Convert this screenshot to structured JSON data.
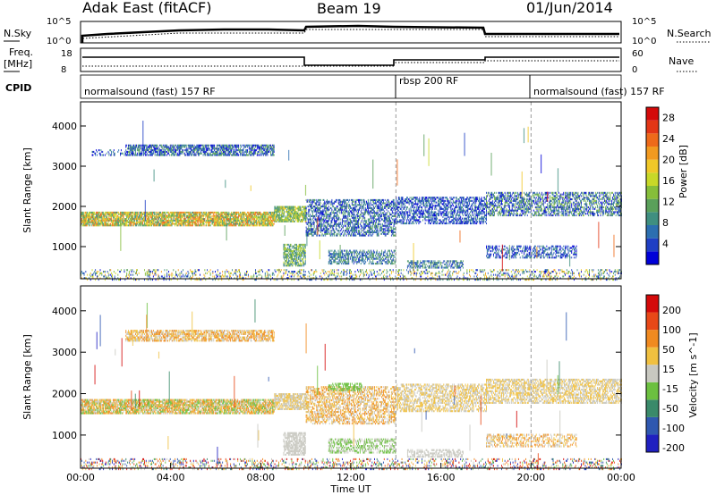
{
  "header": {
    "station": "Adak East (fitACF)",
    "beam": "Beam 19",
    "date": "01/Jun/2014"
  },
  "summary_panels": {
    "nsky": {
      "label": "N.Sky",
      "tick_top": "10^5",
      "tick_bottom": "10^0"
    },
    "nsearch": {
      "label": "N.Search",
      "tick_top": "10^5",
      "tick_bottom": "10^0"
    },
    "freq": {
      "label_line1": "Freq.",
      "label_line2": "[MHz]",
      "tick_top": "18",
      "tick_bottom": "8"
    },
    "nave": {
      "label": "Nave",
      "tick_top": "60",
      "tick_bottom": "0"
    },
    "cpid": {
      "label": "CPID",
      "segments": [
        {
          "name": "normalsound (fast) 157 RF",
          "start_h": 0,
          "end_h": 14
        },
        {
          "name": "rbsp 200 RF",
          "start_h": 14,
          "end_h": 20
        },
        {
          "name": "normalsound (fast) 157 RF",
          "start_h": 20,
          "end_h": 24
        }
      ]
    }
  },
  "chart_data": [
    {
      "type": "heatmap",
      "name": "power",
      "ylabel": "Slant Range [km]",
      "ylim": [
        200,
        4600
      ],
      "yticks": [
        "1000",
        "2000",
        "3000",
        "4000"
      ],
      "colorbar_label": "Power [dB]",
      "colorbar_ticks": [
        "4",
        "8",
        "12",
        "16",
        "20",
        "24",
        "28"
      ],
      "colors": [
        "#0000d8",
        "#1f3fc4",
        "#2c6fb0",
        "#3f8f80",
        "#5aa05a",
        "#86be3a",
        "#c8d828",
        "#f0c828",
        "#f29a20",
        "#ee6a1a",
        "#e23616",
        "#d40a0a"
      ],
      "bands": [
        {
          "t0": 0.0,
          "t1": 8.6,
          "r0": 1550,
          "r1": 1900,
          "dense": 0.85,
          "lvl": [
            3,
            9
          ]
        },
        {
          "t0": 2.0,
          "t1": 8.6,
          "r0": 3300,
          "r1": 3550,
          "dense": 0.7,
          "lvl": [
            0,
            4
          ]
        },
        {
          "t0": 0.5,
          "t1": 2.0,
          "r0": 3300,
          "r1": 3450,
          "dense": 0.3,
          "lvl": [
            0,
            3
          ]
        },
        {
          "t0": 8.6,
          "t1": 10.0,
          "r0": 1650,
          "r1": 2050,
          "dense": 0.8,
          "lvl": [
            3,
            7
          ]
        },
        {
          "t0": 9.0,
          "t1": 10.0,
          "r0": 550,
          "r1": 1100,
          "dense": 0.7,
          "lvl": [
            2,
            6
          ]
        },
        {
          "t0": 10.0,
          "t1": 14.0,
          "r0": 1300,
          "r1": 2200,
          "dense": 0.55,
          "lvl": [
            0,
            4
          ]
        },
        {
          "t0": 11.0,
          "t1": 14.0,
          "r0": 600,
          "r1": 950,
          "dense": 0.55,
          "lvl": [
            1,
            4
          ]
        },
        {
          "t0": 14.0,
          "t1": 18.0,
          "r0": 1600,
          "r1": 2250,
          "dense": 0.55,
          "lvl": [
            0,
            3
          ]
        },
        {
          "t0": 14.5,
          "t1": 17.0,
          "r0": 500,
          "r1": 700,
          "dense": 0.55,
          "lvl": [
            1,
            4
          ]
        },
        {
          "t0": 18.0,
          "t1": 24.0,
          "r0": 1800,
          "r1": 2400,
          "dense": 0.55,
          "lvl": [
            0,
            5
          ]
        },
        {
          "t0": 18.0,
          "t1": 22.0,
          "r0": 750,
          "r1": 1050,
          "dense": 0.45,
          "lvl": [
            0,
            3
          ]
        },
        {
          "t0": 0.0,
          "t1": 24.0,
          "r0": 200,
          "r1": 450,
          "dense": 0.25,
          "lvl": [
            0,
            8
          ]
        }
      ]
    },
    {
      "type": "heatmap",
      "name": "velocity",
      "ylabel": "Slant Range [km]",
      "ylim": [
        200,
        4600
      ],
      "yticks": [
        "1000",
        "2000",
        "3000",
        "4000"
      ],
      "xticks": [
        "00:00",
        "04:00",
        "08:00",
        "12:00",
        "16:00",
        "20:00",
        "00:00"
      ],
      "xlabel": "Time UT",
      "colorbar_label": "Velocity [m s^-1]",
      "colorbar_ticks": [
        "200",
        "100",
        "50",
        "15",
        "-15",
        "-50",
        "-100",
        "-200"
      ],
      "colors": [
        "#2020c0",
        "#2f58b0",
        "#3a8a6a",
        "#6cc040",
        "#c8c8c0",
        "#f0c040",
        "#f08a20",
        "#e84818",
        "#d40a0a"
      ],
      "bands": [
        {
          "t0": 0.0,
          "t1": 8.6,
          "r0": 1550,
          "r1": 1900,
          "dense": 0.85,
          "lvl": [
            3,
            6
          ]
        },
        {
          "t0": 2.0,
          "t1": 8.6,
          "r0": 3300,
          "r1": 3550,
          "dense": 0.7,
          "lvl": [
            4,
            6
          ]
        },
        {
          "t0": 8.6,
          "t1": 10.0,
          "r0": 1650,
          "r1": 2050,
          "dense": 0.8,
          "lvl": [
            4,
            5
          ]
        },
        {
          "t0": 9.0,
          "t1": 10.0,
          "r0": 550,
          "r1": 1100,
          "dense": 0.7,
          "lvl": [
            4,
            4
          ]
        },
        {
          "t0": 10.0,
          "t1": 14.0,
          "r0": 1300,
          "r1": 2200,
          "dense": 0.55,
          "lvl": [
            4,
            6
          ]
        },
        {
          "t0": 11.0,
          "t1": 12.5,
          "r0": 2100,
          "r1": 2300,
          "dense": 0.5,
          "lvl": [
            3,
            3
          ]
        },
        {
          "t0": 11.0,
          "t1": 14.0,
          "r0": 600,
          "r1": 950,
          "dense": 0.55,
          "lvl": [
            3,
            4
          ]
        },
        {
          "t0": 14.0,
          "t1": 18.0,
          "r0": 1600,
          "r1": 2250,
          "dense": 0.55,
          "lvl": [
            4,
            5
          ]
        },
        {
          "t0": 14.5,
          "t1": 17.0,
          "r0": 500,
          "r1": 700,
          "dense": 0.55,
          "lvl": [
            4,
            4
          ]
        },
        {
          "t0": 18.0,
          "t1": 24.0,
          "r0": 1800,
          "r1": 2400,
          "dense": 0.6,
          "lvl": [
            4,
            5
          ]
        },
        {
          "t0": 18.0,
          "t1": 22.0,
          "r0": 750,
          "r1": 1050,
          "dense": 0.45,
          "lvl": [
            4,
            6
          ]
        },
        {
          "t0": 0.0,
          "t1": 24.0,
          "r0": 200,
          "r1": 450,
          "dense": 0.25,
          "lvl": [
            0,
            8
          ]
        }
      ]
    }
  ]
}
